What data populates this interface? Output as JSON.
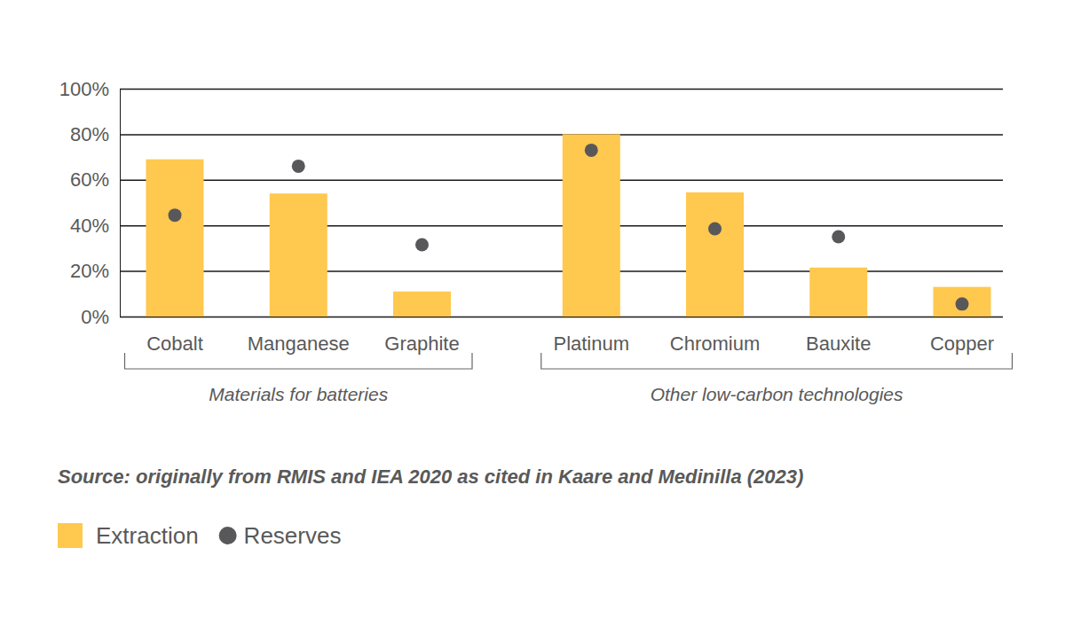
{
  "chart_data": {
    "type": "bar",
    "categories": [
      "Cobalt",
      "Manganese",
      "Graphite",
      "Platinum",
      "Chromium",
      "Bauxite",
      "Copper"
    ],
    "category_groups": [
      "Materials for batteries",
      "Materials for batteries",
      "Materials for batteries",
      "Other low-carbon technologies",
      "Other low-carbon technologies",
      "Other low-carbon technologies",
      "Other low-carbon technologies"
    ],
    "series": [
      {
        "name": "Extraction",
        "type": "bar",
        "color": "#ffc84f",
        "values": [
          69,
          54,
          11,
          80,
          54.5,
          21.5,
          13
        ]
      },
      {
        "name": "Reserves",
        "type": "scatter",
        "marker": "circle",
        "color": "#58585a",
        "values": [
          44.5,
          66,
          31.5,
          73,
          38.5,
          35,
          5.5
        ]
      }
    ],
    "ylim": [
      0,
      100
    ],
    "yticks": [
      {
        "value": 0,
        "label": "0%"
      },
      {
        "value": 20,
        "label": "20%"
      },
      {
        "value": 40,
        "label": "40%"
      },
      {
        "value": 60,
        "label": "60%"
      },
      {
        "value": 80,
        "label": "80%"
      },
      {
        "value": 100,
        "label": "100%"
      }
    ],
    "grid": true,
    "legend": "bottom-left",
    "source": "Source: originally from RMIS and IEA 2020 as cited in Kaare and Medinilla (2023)"
  }
}
